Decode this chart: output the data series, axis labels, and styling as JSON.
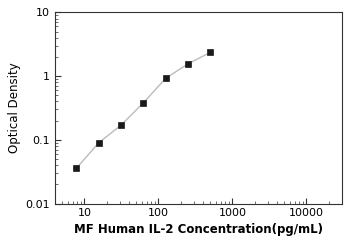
{
  "x": [
    7.8,
    15.6,
    31.25,
    62.5,
    125,
    250,
    500
  ],
  "y": [
    0.036,
    0.09,
    0.17,
    0.38,
    0.92,
    1.55,
    2.35
  ],
  "xlabel": "MF Human IL-2 Concentration(pg/mL)",
  "ylabel": "Optical Density",
  "xlim": [
    4,
    30000
  ],
  "ylim": [
    0.01,
    10
  ],
  "xticks": [
    10,
    100,
    1000,
    10000
  ],
  "yticks": [
    0.01,
    0.1,
    1,
    10
  ],
  "line_color": "#bbbbbb",
  "marker_color": "#1a1a1a",
  "background_color": "#ffffff",
  "xlabel_fontsize": 8.5,
  "ylabel_fontsize": 8.5,
  "tick_fontsize": 8
}
